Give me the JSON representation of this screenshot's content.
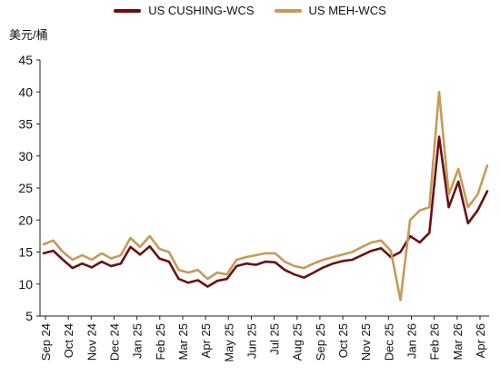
{
  "chart_data": {
    "type": "line",
    "ylabel": "美元/桶",
    "ylim": [
      5,
      45
    ],
    "yticks": [
      5,
      10,
      15,
      20,
      25,
      30,
      35,
      40,
      45
    ],
    "x_tick_labels": [
      "Sep 24",
      "Oct 24",
      "Nov 24",
      "Dec 24",
      "Jan 25",
      "Feb 25",
      "Mar 25",
      "Apr 25",
      "May 25",
      "Jun 25",
      "Jul 25",
      "Aug 25",
      "Sep 25",
      "Oct 25",
      "Nov 25",
      "Dec 25",
      "Jan 26",
      "Feb 26",
      "Mar 26",
      "Apr 26"
    ],
    "legend_position": "top-center",
    "grid": false,
    "x": [
      "Sep 24",
      "Sep 24b",
      "Oct 24",
      "Oct 24b",
      "Nov 24",
      "Nov 24b",
      "Dec 24",
      "Dec 24b",
      "Jan 25",
      "Jan 25b",
      "Feb 25",
      "Feb 25b",
      "Mar 25",
      "Mar 25b",
      "Apr 25",
      "Apr 25b",
      "May 25",
      "May 25b",
      "Jun 25",
      "Jun 25b",
      "Jul 25",
      "Jul 25b",
      "Aug 25",
      "Aug 25b",
      "Sep 25",
      "Sep 25b",
      "Oct 25",
      "Oct 25b",
      "Nov 25",
      "Nov 25b",
      "Dec 25",
      "Dec 25b",
      "Jan 26",
      "Jan 26b",
      "Feb 26",
      "Feb 26b",
      "Mar 26",
      "Mar 26a",
      "Mar 26b",
      "Mar 26c",
      "Mar 26d",
      "Apr 26",
      "Apr 26a",
      "Apr 26b",
      "Apr 26c",
      "Apr 26d",
      "Apr 26e"
    ],
    "series": [
      {
        "name": "US CUSHING-WCS",
        "color": "#6b0f12",
        "values": [
          14.8,
          15.2,
          13.8,
          12.5,
          13.2,
          12.6,
          13.5,
          12.8,
          13.2,
          15.8,
          14.6,
          15.9,
          14.0,
          13.5,
          10.8,
          10.2,
          10.6,
          9.6,
          10.5,
          10.8,
          12.8,
          13.2,
          13.0,
          13.5,
          13.4,
          12.2,
          11.5,
          11.0,
          11.8,
          12.6,
          13.2,
          13.6,
          13.8,
          14.5,
          15.2,
          15.6,
          14.2,
          15.0,
          17.5,
          16.5,
          18.0,
          33.0,
          22.0,
          26.0,
          19.5,
          21.5,
          24.5
        ]
      },
      {
        "name": "US MEH-WCS",
        "color": "#c79a58",
        "values": [
          16.2,
          16.8,
          15.0,
          13.8,
          14.5,
          13.8,
          14.8,
          14.0,
          14.5,
          17.2,
          15.8,
          17.5,
          15.5,
          15.0,
          12.2,
          11.8,
          12.2,
          10.8,
          11.8,
          11.5,
          13.8,
          14.2,
          14.5,
          14.8,
          14.8,
          13.5,
          12.8,
          12.5,
          13.2,
          13.8,
          14.2,
          14.6,
          15.0,
          15.8,
          16.5,
          16.8,
          15.2,
          7.5,
          20.0,
          21.5,
          22.0,
          40.0,
          24.0,
          28.0,
          22.0,
          24.0,
          28.5
        ]
      }
    ]
  }
}
